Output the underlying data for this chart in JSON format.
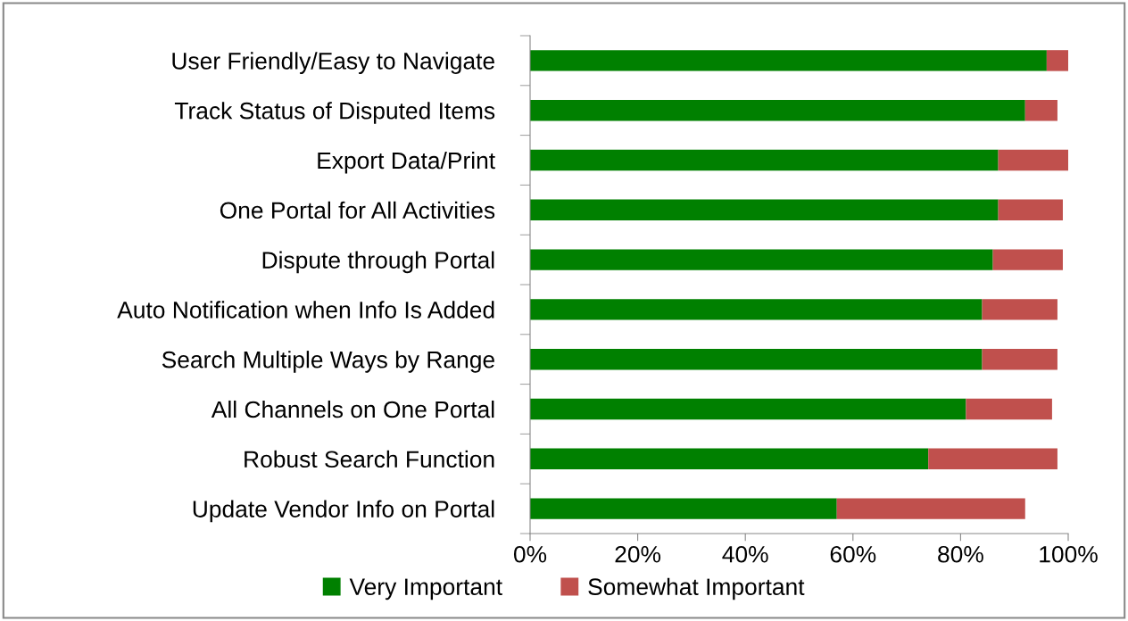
{
  "chart_data": {
    "type": "bar",
    "orientation": "horizontal",
    "stacked": true,
    "categories": [
      "User Friendly/Easy to Navigate",
      "Track Status of Disputed Items",
      "Export Data/Print",
      "One Portal for All Activities",
      "Dispute through Portal",
      "Auto Notification when Info Is Added",
      "Search Multiple Ways by Range",
      "All Channels on One Portal",
      "Robust Search Function",
      "Update Vendor Info on Portal"
    ],
    "series": [
      {
        "name": "Very Important",
        "color": "#008000",
        "values": [
          96,
          92,
          87,
          87,
          86,
          84,
          84,
          81,
          74,
          57
        ]
      },
      {
        "name": "Somewhat Important",
        "color": "#c0504d",
        "values": [
          4,
          6,
          13,
          12,
          13,
          14,
          14,
          16,
          24,
          35
        ]
      }
    ],
    "xlim": [
      0,
      100
    ],
    "xticks": [
      {
        "value": 0,
        "label": "0%"
      },
      {
        "value": 20,
        "label": "20%"
      },
      {
        "value": 40,
        "label": "40%"
      },
      {
        "value": 60,
        "label": "60%"
      },
      {
        "value": 80,
        "label": "80%"
      },
      {
        "value": 100,
        "label": "100%"
      }
    ],
    "grid": false,
    "legend": "bottom"
  }
}
